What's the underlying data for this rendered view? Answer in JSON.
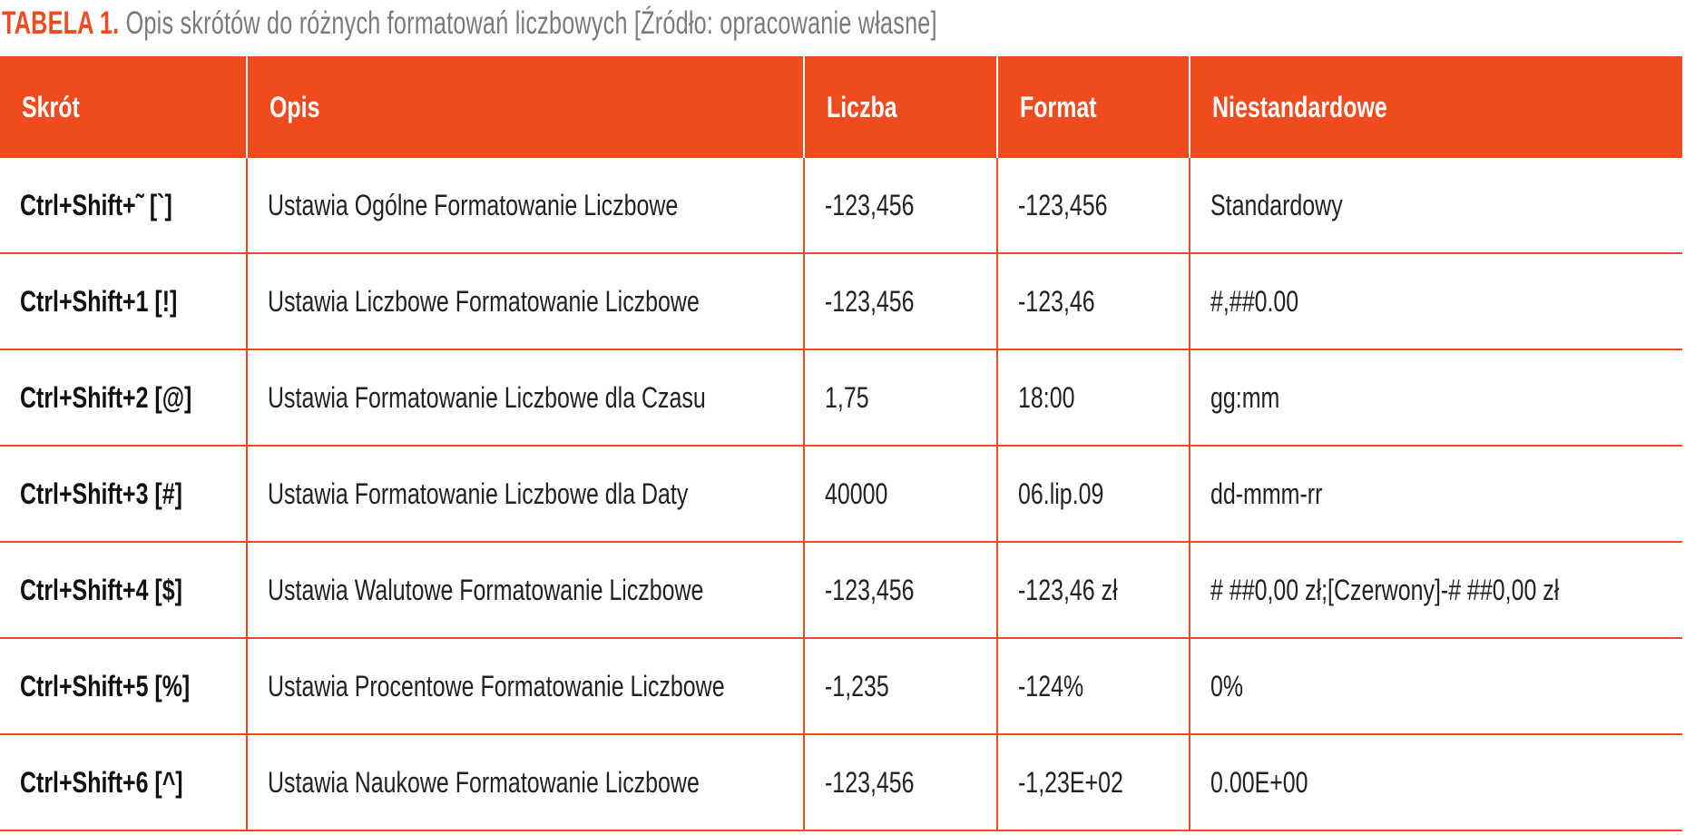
{
  "caption": {
    "label": "TABELA 1.",
    "text": "Opis skrótów do różnych formatowań liczbowych [Źródło: opracowanie własne]"
  },
  "accent_color": "#f04b1f",
  "table": {
    "headers": [
      "Skrót",
      "Opis",
      "Liczba",
      "Format",
      "Niestandardowe"
    ],
    "rows": [
      [
        "Ctrl+Shift+˜ [`]",
        "Ustawia Ogólne Formatowanie Liczbowe",
        "-123,456",
        "-123,456",
        "Standardowy"
      ],
      [
        "Ctrl+Shift+1  [!]",
        "Ustawia Liczbowe Formatowanie Liczbowe",
        "-123,456",
        "-123,46",
        "#,##0.00"
      ],
      [
        "Ctrl+Shift+2 [@]",
        "Ustawia Formatowanie Liczbowe dla Czasu",
        "1,75",
        "18:00",
        "gg:mm"
      ],
      [
        "Ctrl+Shift+3 [#]",
        "Ustawia Formatowanie Liczbowe dla Daty",
        "40000",
        "06.lip.09",
        "dd-mmm-rr"
      ],
      [
        "Ctrl+Shift+4 [$]",
        "Ustawia Walutowe Formatowanie Liczbowe",
        "-123,456",
        "-123,46 zł",
        "# ##0,00 zł;[Czerwony]-# ##0,00 zł"
      ],
      [
        "Ctrl+Shift+5 [%]",
        "Ustawia Procentowe Formatowanie Liczbowe",
        "-1,235",
        "-124%",
        "0%"
      ],
      [
        "Ctrl+Shift+6 [^]",
        "Ustawia Naukowe Formatowanie Liczbowe",
        "-123,456",
        "-1,23E+02",
        "0.00E+00"
      ]
    ]
  }
}
